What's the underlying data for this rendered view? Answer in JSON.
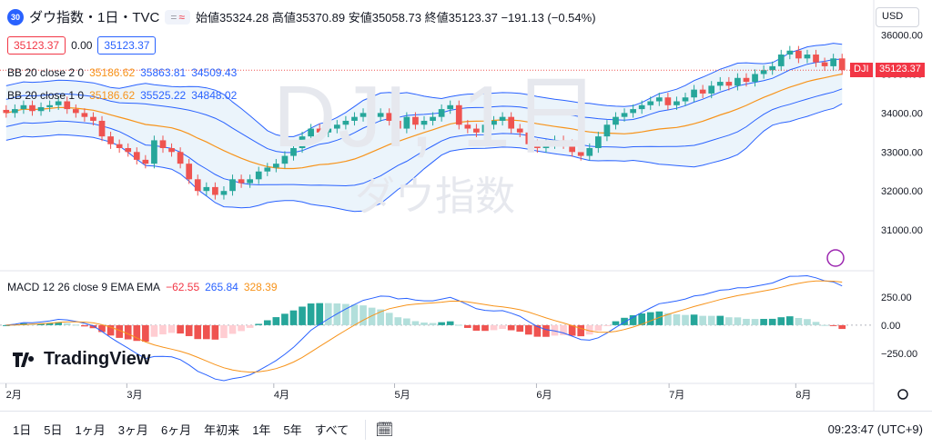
{
  "header": {
    "badge": "30",
    "title": "ダウ指数・1日・TVC",
    "chip_a": "=",
    "chip_b": "≈",
    "open_label": "始値",
    "open": "35324.28",
    "high_label": "高値",
    "high": "35370.89",
    "low_label": "安値",
    "low": "35058.73",
    "close_label": "終値",
    "close": "35123.37",
    "change": "−191.13 (−0.54%)"
  },
  "price_row": {
    "left": "35123.37",
    "spread": "0.00",
    "right": "35123.37"
  },
  "bb1": {
    "label": "BB 20 close 2 0",
    "basis": "35186.62",
    "upper": "35863.81",
    "lower": "34509.43"
  },
  "bb2": {
    "label": "BB 20 close 1 0",
    "basis": "35186.62",
    "upper": "35525.22",
    "lower": "34848.02"
  },
  "macd": {
    "label": "MACD 12 26 close 9 EMA EMA",
    "hist": "−62.55",
    "macd": "265.84",
    "signal": "328.39"
  },
  "currency": "USD",
  "watermark": {
    "symbol": "DJI, 1日",
    "name": "ダウ指数"
  },
  "last_price": {
    "symbol": "DJI",
    "value": "35123.37"
  },
  "logo": "TradingView",
  "ranges": [
    "1日",
    "5日",
    "1ヶ月",
    "3ヶ月",
    "6ヶ月",
    "年初来",
    "1年",
    "5年",
    "すべて"
  ],
  "clock": "09:23:47 (UTC+9)",
  "colors": {
    "up": "#26a69a",
    "down": "#ef5350",
    "basis": "#f7931a",
    "band": "#2962ff",
    "fill": "#e3effa"
  },
  "chart_data": {
    "type": "candlestick",
    "x_ticks": [
      "2月",
      "3月",
      "4月",
      "5月",
      "6月",
      "7月",
      "8月"
    ],
    "y_ticks": [
      "36000.00",
      "35000.00",
      "34000.00",
      "33000.00",
      "32000.00",
      "31000.00"
    ],
    "ylim": [
      30000,
      36200
    ],
    "closes": [
      34000,
      34100,
      34200,
      34050,
      34150,
      34200,
      34300,
      34100,
      34000,
      33900,
      33800,
      33400,
      33200,
      33100,
      33000,
      32800,
      32700,
      33300,
      33100,
      33000,
      32700,
      32300,
      32000,
      32100,
      31900,
      32000,
      32300,
      32200,
      32300,
      32500,
      32600,
      32700,
      32900,
      33100,
      33400,
      33600,
      33500,
      33600,
      33700,
      33800,
      33900,
      34000,
      33900,
      34000,
      33800,
      33600,
      33900,
      33700,
      33800,
      33900,
      34100,
      34200,
      33700,
      33600,
      33500,
      33700,
      33800,
      33900,
      33600,
      33500,
      33200,
      33100,
      33200,
      33300,
      33200,
      33000,
      32900,
      33100,
      33400,
      33700,
      33900,
      34000,
      34100,
      34200,
      34300,
      34400,
      34200,
      34300,
      34400,
      34600,
      34500,
      34700,
      34800,
      34700,
      34900,
      34800,
      35000,
      35100,
      35200,
      35500,
      35600,
      35400,
      35500,
      35300,
      35200,
      35400,
      35100
    ],
    "macd_ylim": [
      -500,
      450
    ],
    "macd_ticks": [
      "250.00",
      "0.00",
      "−250.00"
    ]
  }
}
